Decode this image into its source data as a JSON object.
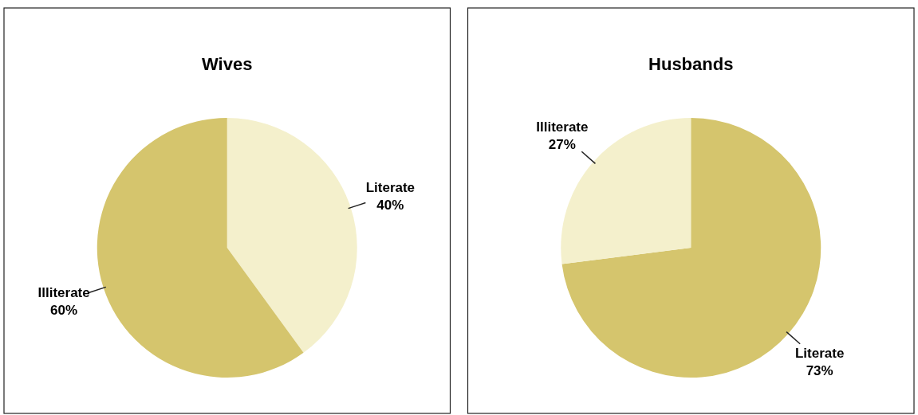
{
  "chart_data": [
    {
      "type": "pie",
      "title": "Wives",
      "categories": [
        "Literate",
        "Illiterate"
      ],
      "values": [
        40,
        60
      ],
      "colors": [
        "#f4f0cc",
        "#d5c56d"
      ],
      "value_labels": [
        "40%",
        "60%"
      ]
    },
    {
      "type": "pie",
      "title": "Husbands",
      "categories": [
        "Literate",
        "Illiterate"
      ],
      "values": [
        73,
        27
      ],
      "colors": [
        "#d5c56d",
        "#f4f0cc"
      ],
      "value_labels": [
        "73%",
        "27%"
      ]
    }
  ]
}
